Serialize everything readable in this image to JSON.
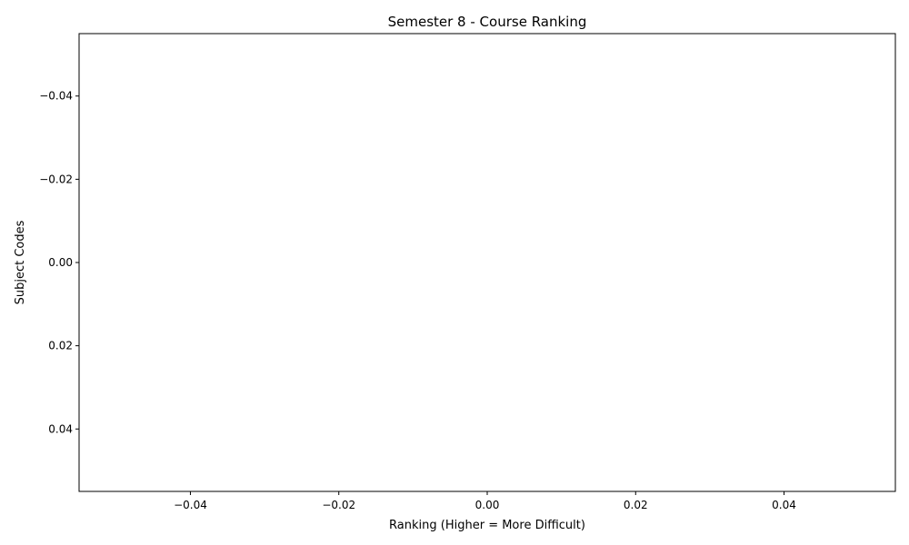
{
  "chart_data": {
    "type": "bar",
    "orientation": "horizontal",
    "title": "Semester 8 - Course Ranking",
    "xlabel": "Ranking (Higher = More Difficult)",
    "ylabel": "Subject Codes",
    "categories": [],
    "values": [],
    "xlim": [
      -0.055,
      0.055
    ],
    "ylim": [
      -0.055,
      0.055
    ],
    "y_inverted": true,
    "xticks": [
      -0.04,
      -0.02,
      0.0,
      0.02,
      0.04
    ],
    "xtick_labels": [
      "−0.04",
      "−0.02",
      "0.00",
      "0.02",
      "0.04"
    ],
    "yticks": [
      -0.04,
      -0.02,
      0.0,
      0.02,
      0.04
    ],
    "ytick_labels": [
      "−0.04",
      "−0.02",
      "0.00",
      "0.02",
      "0.04"
    ],
    "grid": false,
    "legend": "none"
  }
}
